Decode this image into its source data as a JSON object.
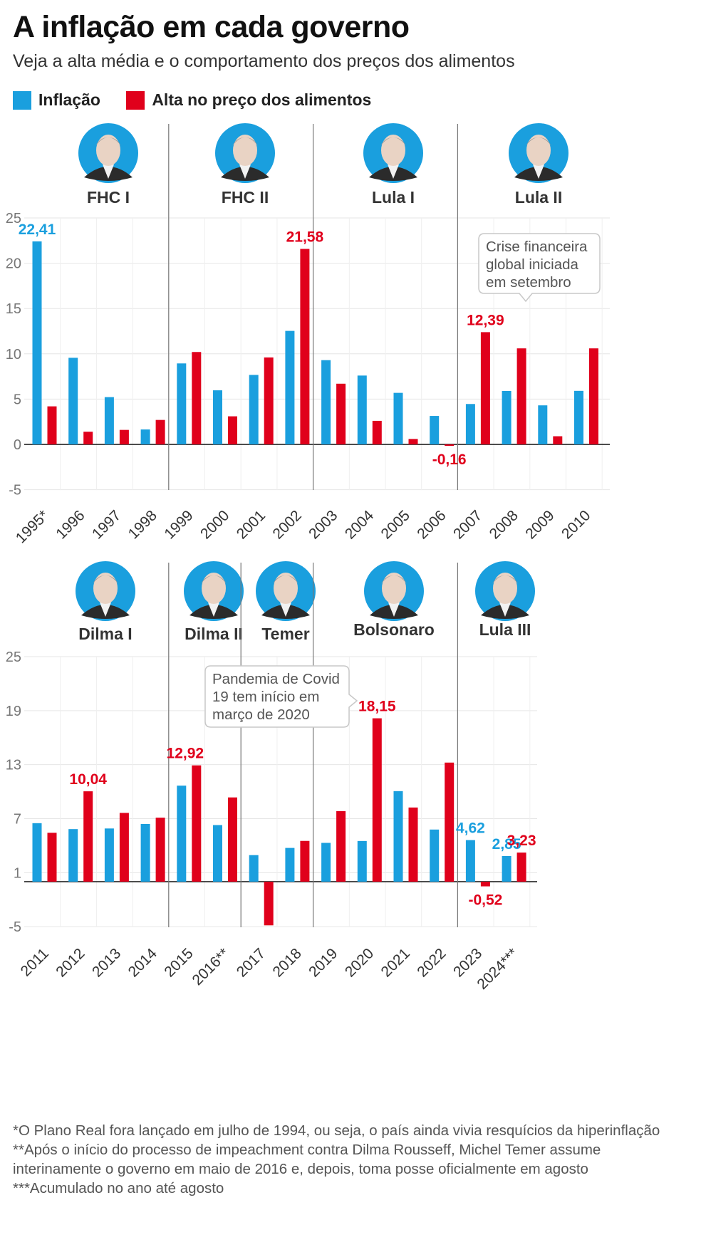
{
  "title": "A inflação em cada governo",
  "subtitle": "Veja a alta média e o comportamento dos preços dos alimentos",
  "colors": {
    "inflation": "#1a9fde",
    "food": "#e0001b",
    "face_bg": "#1a9fde"
  },
  "legend": {
    "inflation": "Inflação",
    "food": "Alta no preço dos alimentos"
  },
  "chart_data": [
    {
      "type": "bar",
      "ylim": [
        -5,
        25
      ],
      "yticks": [
        "25",
        "20",
        "15",
        "10",
        "5",
        "0",
        "-5"
      ],
      "ytick_values": [
        25,
        20,
        15,
        10,
        5,
        0,
        -5
      ],
      "categories": [
        "1995*",
        "1996",
        "1997",
        "1998",
        "1999",
        "2000",
        "2001",
        "2002",
        "2003",
        "2004",
        "2005",
        "2006",
        "2007",
        "2008",
        "2009",
        "2010"
      ],
      "series": [
        {
          "name": "Inflação",
          "values": [
            22.41,
            9.56,
            5.22,
            1.65,
            8.94,
            5.97,
            7.67,
            12.53,
            9.3,
            7.6,
            5.69,
            3.14,
            4.46,
            5.9,
            4.31,
            5.91
          ]
        },
        {
          "name": "Alta no preço dos alimentos",
          "values": [
            4.2,
            1.4,
            1.6,
            2.7,
            10.2,
            3.1,
            9.6,
            21.58,
            6.7,
            2.6,
            0.6,
            -0.16,
            12.39,
            10.6,
            0.9,
            10.6
          ]
        }
      ],
      "governments": [
        {
          "name": "FHC I",
          "start": 0,
          "end": 4
        },
        {
          "name": "FHC II",
          "start": 4,
          "end": 8
        },
        {
          "name": "Lula I",
          "start": 8,
          "end": 12
        },
        {
          "name": "Lula II",
          "start": 12,
          "end": 16
        }
      ],
      "labels": [
        {
          "text": "22,41",
          "series": 0,
          "index": 0
        },
        {
          "text": "21,58",
          "series": 1,
          "index": 7
        },
        {
          "text": "-0,16",
          "series": 1,
          "index": 11
        },
        {
          "text": "12,39",
          "series": 1,
          "index": 12
        }
      ],
      "annotation": {
        "text": [
          "Crise financeira",
          "global iniciada",
          "em setembro"
        ]
      }
    },
    {
      "type": "bar",
      "ylim": [
        -5,
        25
      ],
      "yticks": [
        "25",
        "19",
        "13",
        "7",
        "1",
        "-5"
      ],
      "ytick_values": [
        25,
        19,
        13,
        7,
        1,
        -5
      ],
      "categories": [
        "2011",
        "2012",
        "2013",
        "2014",
        "2015",
        "2016**",
        "2017",
        "2018",
        "2019",
        "2020",
        "2021",
        "2022",
        "2023",
        "2024***"
      ],
      "series": [
        {
          "name": "Inflação",
          "values": [
            6.5,
            5.84,
            5.91,
            6.41,
            10.67,
            6.29,
            2.95,
            3.75,
            4.31,
            4.52,
            10.06,
            5.79,
            4.62,
            2.85
          ]
        },
        {
          "name": "Alta no preço dos alimentos",
          "values": [
            5.43,
            10.04,
            7.64,
            7.11,
            12.92,
            9.36,
            -4.85,
            4.53,
            7.84,
            18.15,
            8.24,
            13.23,
            -0.52,
            3.23
          ]
        }
      ],
      "governments": [
        {
          "name": "Dilma I",
          "start": 0,
          "end": 4
        },
        {
          "name": "Dilma II",
          "start": 4,
          "end": 6
        },
        {
          "name": "Temer",
          "start": 6,
          "end": 8
        },
        {
          "name": "Bolsonaro",
          "start": 8,
          "end": 12
        },
        {
          "name": "Lula III",
          "start": 12,
          "end": 14
        }
      ],
      "labels": [
        {
          "text": "10,04",
          "series": 1,
          "index": 1
        },
        {
          "text": "12,92",
          "series": 1,
          "index": 4
        },
        {
          "text": "18,15",
          "series": 1,
          "index": 9
        },
        {
          "text": "4,62",
          "series": 0,
          "index": 12
        },
        {
          "text": "-0,52",
          "series": 1,
          "index": 12
        },
        {
          "text": "2,85",
          "series": 0,
          "index": 13
        },
        {
          "text": "3,23",
          "series": 1,
          "index": 13
        }
      ],
      "annotation": {
        "text": [
          "Pandemia de Covid",
          "19 tem início em",
          "março de 2020"
        ]
      }
    }
  ],
  "notes": [
    "*O Plano Real fora lançado em julho de 1994, ou seja, o país ainda vivia resquícios da hiperinflação",
    "**Após o início do processo de impeachment contra Dilma Rousseff, Michel Temer assume interinamente o governo em maio de 2016 e, depois, toma posse oficialmente em agosto",
    "***Acumulado no ano até agosto"
  ]
}
